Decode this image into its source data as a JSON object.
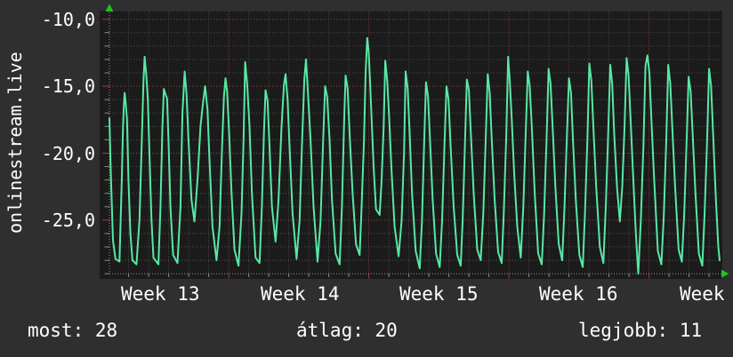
{
  "page": {
    "background": "#2f2f2f",
    "text_color": "#ffffff"
  },
  "footer": [
    {
      "label": "most:",
      "value": "28"
    },
    {
      "label": "átlag:",
      "value": "20"
    },
    {
      "label": "legjobb:",
      "value": "11"
    }
  ],
  "chart_data": {
    "type": "line",
    "title": "onlinestream.live",
    "legend_position": "none",
    "grid": "dotted",
    "colors": {
      "plot_bg": "#1b1b1b",
      "grid_major": "#a03c3c",
      "grid_minor": "#4d4d4d",
      "axis": "#8c8c8c",
      "tick_minor": "#8c8c8c",
      "arrow": "#1ec41e",
      "line": "#57e8a4"
    },
    "x_axis": {
      "unit": "days",
      "days_visible": 30.49,
      "minor_grid_step_days": 1,
      "first_day_gridline_offset": 0.96,
      "week_boundaries_days": [
        5.96,
        12.96,
        19.96,
        26.96
      ],
      "tick_labels": [
        "Week 13",
        "Week 14",
        "Week 15",
        "Week 16",
        "Week"
      ]
    },
    "y_axis": {
      "ylim": [
        -29.0,
        -9.4
      ],
      "major_step": 5,
      "minor_step": 1,
      "tick_values": [
        -10,
        -15,
        -20,
        -25
      ],
      "tick_labels": [
        "-10,0",
        "-15,0",
        "-20,0",
        "-25,0"
      ]
    },
    "stats": {
      "most": 28,
      "atlag": 20,
      "legjobb": 11
    },
    "series": [
      {
        "name": "onlinestream.live",
        "color": "#57e8a4",
        "points": [
          [
            0.0,
            -17.4
          ],
          [
            0.08,
            -22.0
          ],
          [
            0.18,
            -26.5
          ],
          [
            0.3,
            -27.9
          ],
          [
            0.5,
            -28.1
          ],
          [
            0.62,
            -22.0
          ],
          [
            0.68,
            -18.0
          ],
          [
            0.72,
            -16.5
          ],
          [
            0.76,
            -15.5
          ],
          [
            0.82,
            -16.3
          ],
          [
            0.88,
            -17.5
          ],
          [
            0.95,
            -22.0
          ],
          [
            1.05,
            -26.0
          ],
          [
            1.15,
            -28.0
          ],
          [
            1.35,
            -28.3
          ],
          [
            1.5,
            -25.0
          ],
          [
            1.6,
            -20.0
          ],
          [
            1.7,
            -14.6
          ],
          [
            1.76,
            -12.8
          ],
          [
            1.85,
            -14.3
          ],
          [
            1.92,
            -16.0
          ],
          [
            2.0,
            -20.0
          ],
          [
            2.1,
            -25.0
          ],
          [
            2.2,
            -27.8
          ],
          [
            2.45,
            -28.3
          ],
          [
            2.55,
            -24.0
          ],
          [
            2.65,
            -18.0
          ],
          [
            2.72,
            -15.2
          ],
          [
            2.8,
            -15.6
          ],
          [
            2.88,
            -15.9
          ],
          [
            2.95,
            -19.0
          ],
          [
            3.05,
            -24.0
          ],
          [
            3.18,
            -27.6
          ],
          [
            3.4,
            -28.2
          ],
          [
            3.55,
            -24.0
          ],
          [
            3.65,
            -17.0
          ],
          [
            3.76,
            -13.9
          ],
          [
            3.85,
            -15.5
          ],
          [
            3.95,
            -19.0
          ],
          [
            4.1,
            -23.5
          ],
          [
            4.25,
            -25.1
          ],
          [
            4.4,
            -22.0
          ],
          [
            4.55,
            -18.0
          ],
          [
            4.68,
            -16.2
          ],
          [
            4.78,
            -15.0
          ],
          [
            4.9,
            -16.8
          ],
          [
            5.0,
            -20.5
          ],
          [
            5.15,
            -25.5
          ],
          [
            5.35,
            -28.0
          ],
          [
            5.5,
            -25.5
          ],
          [
            5.62,
            -20.0
          ],
          [
            5.72,
            -15.8
          ],
          [
            5.8,
            -14.4
          ],
          [
            5.88,
            -15.4
          ],
          [
            5.98,
            -18.5
          ],
          [
            6.1,
            -23.0
          ],
          [
            6.25,
            -27.2
          ],
          [
            6.45,
            -28.4
          ],
          [
            6.6,
            -24.5
          ],
          [
            6.7,
            -19.0
          ],
          [
            6.78,
            -13.2
          ],
          [
            6.88,
            -14.8
          ],
          [
            7.0,
            -18.0
          ],
          [
            7.12,
            -23.0
          ],
          [
            7.3,
            -27.8
          ],
          [
            7.5,
            -28.2
          ],
          [
            7.62,
            -24.0
          ],
          [
            7.72,
            -18.5
          ],
          [
            7.8,
            -15.3
          ],
          [
            7.9,
            -16.1
          ],
          [
            8.0,
            -19.5
          ],
          [
            8.12,
            -24.0
          ],
          [
            8.3,
            -26.6
          ],
          [
            8.45,
            -23.5
          ],
          [
            8.6,
            -18.0
          ],
          [
            8.72,
            -14.9
          ],
          [
            8.8,
            -14.1
          ],
          [
            8.9,
            -16.0
          ],
          [
            9.0,
            -19.5
          ],
          [
            9.15,
            -24.5
          ],
          [
            9.35,
            -27.9
          ],
          [
            9.5,
            -25.0
          ],
          [
            9.62,
            -19.5
          ],
          [
            9.74,
            -14.5
          ],
          [
            9.82,
            -13.0
          ],
          [
            9.92,
            -15.5
          ],
          [
            10.05,
            -19.0
          ],
          [
            10.2,
            -24.0
          ],
          [
            10.4,
            -28.1
          ],
          [
            10.55,
            -25.0
          ],
          [
            10.68,
            -19.0
          ],
          [
            10.78,
            -15.0
          ],
          [
            10.88,
            -15.8
          ],
          [
            11.0,
            -19.0
          ],
          [
            11.12,
            -23.5
          ],
          [
            11.3,
            -27.5
          ],
          [
            11.5,
            -28.3
          ],
          [
            11.62,
            -24.0
          ],
          [
            11.72,
            -18.0
          ],
          [
            11.8,
            -14.2
          ],
          [
            11.9,
            -15.2
          ],
          [
            12.0,
            -18.5
          ],
          [
            12.15,
            -23.0
          ],
          [
            12.32,
            -26.8
          ],
          [
            12.5,
            -27.6
          ],
          [
            12.6,
            -24.0
          ],
          [
            12.72,
            -19.0
          ],
          [
            12.8,
            -14.0
          ],
          [
            12.88,
            -11.4
          ],
          [
            12.95,
            -12.4
          ],
          [
            13.02,
            -14.5
          ],
          [
            13.1,
            -17.5
          ],
          [
            13.2,
            -21.0
          ],
          [
            13.32,
            -24.2
          ],
          [
            13.5,
            -24.6
          ],
          [
            13.6,
            -22.0
          ],
          [
            13.7,
            -18.0
          ],
          [
            13.78,
            -13.1
          ],
          [
            13.88,
            -14.6
          ],
          [
            13.98,
            -17.5
          ],
          [
            14.1,
            -21.5
          ],
          [
            14.25,
            -25.5
          ],
          [
            14.45,
            -27.7
          ],
          [
            14.6,
            -25.0
          ],
          [
            14.72,
            -20.0
          ],
          [
            14.8,
            -13.9
          ],
          [
            14.9,
            -15.2
          ],
          [
            15.0,
            -18.5
          ],
          [
            15.12,
            -23.0
          ],
          [
            15.3,
            -27.3
          ],
          [
            15.5,
            -28.6
          ],
          [
            15.62,
            -25.0
          ],
          [
            15.72,
            -19.5
          ],
          [
            15.82,
            -14.7
          ],
          [
            15.92,
            -15.8
          ],
          [
            16.02,
            -19.0
          ],
          [
            16.15,
            -23.5
          ],
          [
            16.32,
            -27.5
          ],
          [
            16.5,
            -28.5
          ],
          [
            16.62,
            -25.0
          ],
          [
            16.74,
            -19.5
          ],
          [
            16.84,
            -15.0
          ],
          [
            16.94,
            -16.0
          ],
          [
            17.05,
            -19.5
          ],
          [
            17.2,
            -24.0
          ],
          [
            17.38,
            -27.6
          ],
          [
            17.55,
            -28.4
          ],
          [
            17.65,
            -25.0
          ],
          [
            17.76,
            -19.5
          ],
          [
            17.86,
            -14.5
          ],
          [
            17.96,
            -15.3
          ],
          [
            18.06,
            -18.5
          ],
          [
            18.2,
            -23.0
          ],
          [
            18.38,
            -27.2
          ],
          [
            18.55,
            -28.0
          ],
          [
            18.68,
            -24.5
          ],
          [
            18.8,
            -19.0
          ],
          [
            18.9,
            -14.1
          ],
          [
            19.0,
            -15.5
          ],
          [
            19.1,
            -19.0
          ],
          [
            19.25,
            -23.5
          ],
          [
            19.42,
            -27.4
          ],
          [
            19.6,
            -28.2
          ],
          [
            19.7,
            -24.5
          ],
          [
            19.82,
            -19.0
          ],
          [
            19.92,
            -12.8
          ],
          [
            20.0,
            -14.5
          ],
          [
            20.1,
            -17.5
          ],
          [
            20.22,
            -21.5
          ],
          [
            20.38,
            -25.5
          ],
          [
            20.55,
            -27.8
          ],
          [
            20.68,
            -24.0
          ],
          [
            20.8,
            -18.5
          ],
          [
            20.9,
            -13.9
          ],
          [
            21.0,
            -15.0
          ],
          [
            21.1,
            -18.0
          ],
          [
            21.25,
            -23.0
          ],
          [
            21.42,
            -27.5
          ],
          [
            21.6,
            -28.3
          ],
          [
            21.72,
            -24.5
          ],
          [
            21.84,
            -19.0
          ],
          [
            21.94,
            -13.7
          ],
          [
            22.04,
            -14.8
          ],
          [
            22.14,
            -18.0
          ],
          [
            22.28,
            -22.5
          ],
          [
            22.45,
            -26.8
          ],
          [
            22.62,
            -28.0
          ],
          [
            22.74,
            -24.0
          ],
          [
            22.86,
            -18.5
          ],
          [
            22.96,
            -14.4
          ],
          [
            23.06,
            -15.5
          ],
          [
            23.16,
            -19.0
          ],
          [
            23.3,
            -23.5
          ],
          [
            23.48,
            -27.6
          ],
          [
            23.65,
            -28.5
          ],
          [
            23.76,
            -24.5
          ],
          [
            23.88,
            -19.0
          ],
          [
            23.98,
            -13.3
          ],
          [
            24.08,
            -14.6
          ],
          [
            24.18,
            -18.0
          ],
          [
            24.32,
            -22.5
          ],
          [
            24.5,
            -27.0
          ],
          [
            24.68,
            -28.2
          ],
          [
            24.8,
            -24.0
          ],
          [
            24.92,
            -18.5
          ],
          [
            25.02,
            -13.4
          ],
          [
            25.12,
            -14.8
          ],
          [
            25.22,
            -18.5
          ],
          [
            25.36,
            -22.5
          ],
          [
            25.5,
            -25.1
          ],
          [
            25.62,
            -22.5
          ],
          [
            25.74,
            -18.0
          ],
          [
            25.84,
            -12.9
          ],
          [
            25.94,
            -14.2
          ],
          [
            26.04,
            -17.5
          ],
          [
            26.16,
            -21.5
          ],
          [
            26.3,
            -26.0
          ],
          [
            26.42,
            -29.0
          ],
          [
            26.55,
            -25.0
          ],
          [
            26.68,
            -19.5
          ],
          [
            26.78,
            -13.5
          ],
          [
            26.88,
            -12.7
          ],
          [
            26.98,
            -14.0
          ],
          [
            27.08,
            -17.5
          ],
          [
            27.22,
            -22.0
          ],
          [
            27.4,
            -27.3
          ],
          [
            27.58,
            -28.3
          ],
          [
            27.7,
            -24.5
          ],
          [
            27.82,
            -19.0
          ],
          [
            27.92,
            -13.4
          ],
          [
            28.02,
            -14.8
          ],
          [
            28.12,
            -18.0
          ],
          [
            28.26,
            -22.5
          ],
          [
            28.44,
            -27.2
          ],
          [
            28.6,
            -28.1
          ],
          [
            28.72,
            -24.5
          ],
          [
            28.84,
            -19.0
          ],
          [
            28.94,
            -14.3
          ],
          [
            29.04,
            -15.4
          ],
          [
            29.14,
            -18.5
          ],
          [
            29.28,
            -23.0
          ],
          [
            29.45,
            -27.5
          ],
          [
            29.62,
            -28.4
          ],
          [
            29.74,
            -24.5
          ],
          [
            29.86,
            -19.0
          ],
          [
            29.96,
            -13.7
          ],
          [
            30.06,
            -15.0
          ],
          [
            30.16,
            -18.5
          ],
          [
            30.3,
            -23.5
          ],
          [
            30.42,
            -27.0
          ],
          [
            30.49,
            -28.0
          ]
        ]
      }
    ]
  }
}
